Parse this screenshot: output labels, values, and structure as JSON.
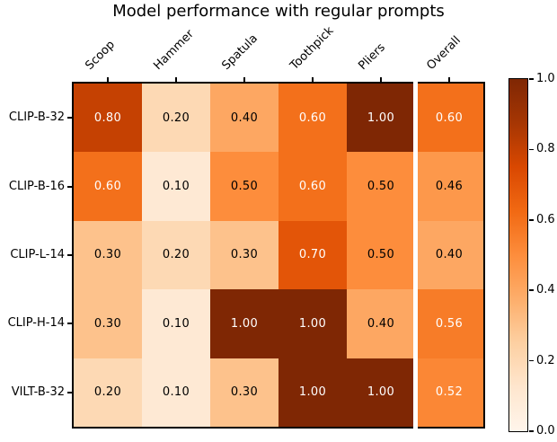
{
  "figure": {
    "background": "#ffffff",
    "frame_color": "#000000"
  },
  "chart_data": {
    "type": "heatmap",
    "title": "Model performance with regular prompts",
    "columns": [
      "Scoop",
      "Hammer",
      "Spatula",
      "Toothpick",
      "Pliers",
      "Overall"
    ],
    "rows": [
      "CLIP-B-32",
      "CLIP-B-16",
      "CLIP-L-14",
      "CLIP-H-14",
      "VILT-B-32"
    ],
    "values": [
      [
        0.8,
        0.2,
        0.4,
        0.6,
        1.0,
        0.6
      ],
      [
        0.6,
        0.1,
        0.5,
        0.6,
        0.5,
        0.46
      ],
      [
        0.3,
        0.2,
        0.3,
        0.7,
        0.5,
        0.4
      ],
      [
        0.3,
        0.1,
        1.0,
        1.0,
        0.4,
        0.56
      ],
      [
        0.2,
        0.1,
        0.3,
        1.0,
        1.0,
        0.52
      ]
    ],
    "value_decimals": 2,
    "vmin": 0.0,
    "vmax": 1.0,
    "colormap": {
      "name": "Oranges",
      "stops": [
        "#fff5eb",
        "#fee6ce",
        "#fdd0a2",
        "#fdae6b",
        "#fd8d3c",
        "#f16913",
        "#d94801",
        "#a63603",
        "#7f2704"
      ]
    },
    "cell_text_colors": {
      "light": "#ffffff",
      "dark": "#000000"
    },
    "white_text_threshold": 0.5,
    "separator_before_column": "Overall",
    "separator_color": "#ffffff",
    "colorbar": {
      "position": "right",
      "tick_labels": [
        "1.0",
        "0.8",
        "0.6",
        "0.4",
        "0.2",
        "0.0"
      ]
    },
    "grid": false,
    "x_tick_rotation_deg": 45
  }
}
